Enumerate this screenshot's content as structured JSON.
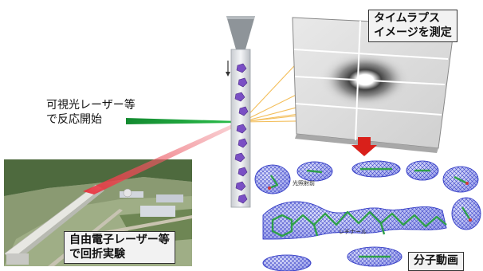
{
  "labels": {
    "visible_light_line1": "可視光レーザー等",
    "visible_light_line2": "で反応開始",
    "timelapse_line1": "タイムラプス",
    "timelapse_line2": "イメージを測定",
    "xfel_line1": "自由電子レーザー等",
    "xfel_line2": "で回折実験",
    "molecular_movie": "分子動画",
    "photo_state": "光照射前",
    "retinal": "レチナール"
  },
  "colors": {
    "visible_laser": "#1a9e3a",
    "xray_laser": "#e0404a",
    "diffraction_rays": "#f2b84a",
    "crystal": "#7a4fc4",
    "arrow": "#d9201a",
    "density_mesh": "#3b43c8",
    "molecule_bonds": "#2fa04a"
  },
  "icons": {
    "flow_arrow": "red-down-arrow-icon",
    "facility": "xfel-facility-photo",
    "detector": "diffraction-detector-panel"
  }
}
